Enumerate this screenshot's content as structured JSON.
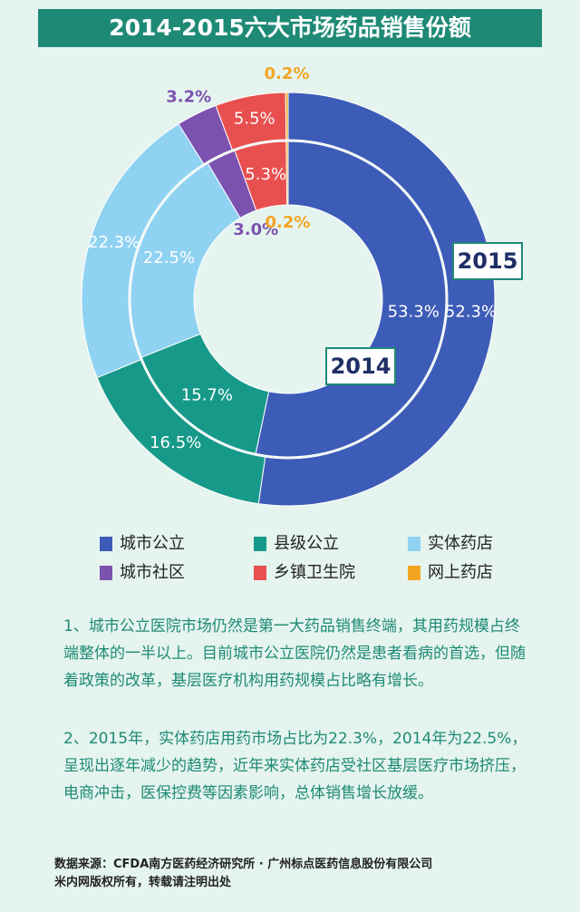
{
  "chart_data": {
    "type": "donut",
    "title": "2014-2015六大市场药品销售份额",
    "categories": [
      "城市公立",
      "县级公立",
      "实体药店",
      "城市社区",
      "乡镇卫生院",
      "网上药店"
    ],
    "colors": [
      "#3d5cb8",
      "#17998a",
      "#8fd2f2",
      "#7c52b0",
      "#e8504f",
      "#f2a524"
    ],
    "series": [
      {
        "name": "2015",
        "values": [
          52.3,
          16.5,
          22.3,
          3.2,
          5.5,
          0.2
        ],
        "value_labels": [
          "52.3%",
          "16.5%",
          "22.3%",
          "3.2%",
          "5.5%",
          "0.2%"
        ]
      },
      {
        "name": "2014",
        "values": [
          53.3,
          15.7,
          22.5,
          3.0,
          5.3,
          0.2
        ],
        "value_labels": [
          "53.3%",
          "15.7%",
          "22.5%",
          "3.0%",
          "5.3%",
          "0.2%"
        ]
      }
    ]
  },
  "notes": [
    "1、城市公立医院市场仍然是第一大药品销售终端，其用药规模占终端整体的一半以上。目前城市公立医院仍然是患者看病的首选，但随着政策的改革，基层医疗机构用药规模占比略有增长。",
    "2、2015年，实体药店用药市场占比为22.3%，2014年为22.5%，呈现出逐年减少的趋势，近年来实体药店受社区基层医疗市场挤压，电商冲击，医保控费等因素影响，总体销售增长放缓。"
  ],
  "source": [
    "数据来源：CFDA南方医药经济研究所 · 广州标点医药信息股份有限公司",
    "米内网版权所有，转载请注明出处"
  ]
}
